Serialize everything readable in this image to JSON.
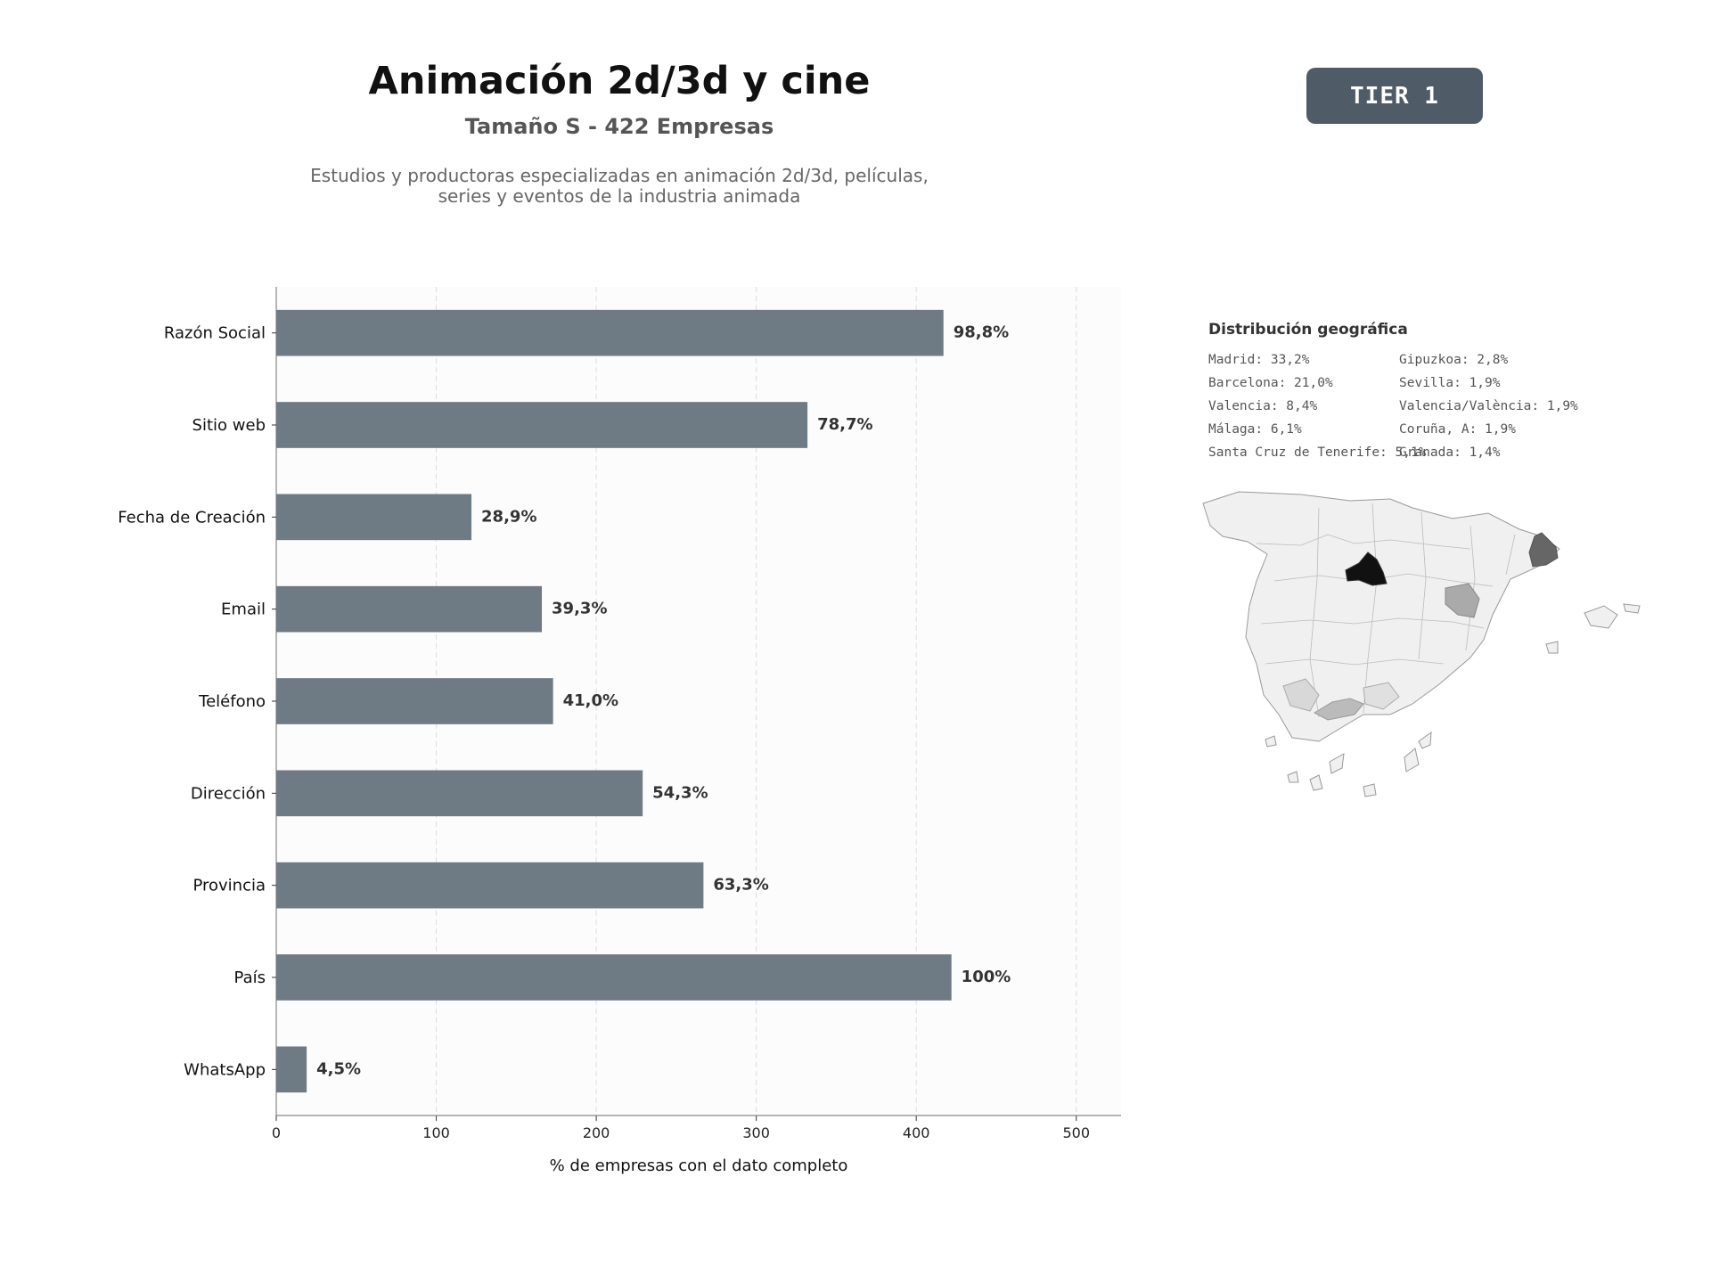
{
  "header": {
    "title": "Animación 2d/3d y cine",
    "subtitle": "Tamaño S - 422 Empresas",
    "description_line1": "Estudios y productoras especializadas en animación 2d/3d, películas,",
    "description_line2": "series y eventos de la industria animada",
    "tier": "TIER 1"
  },
  "colors": {
    "bar": "#6e7a84",
    "bar_label": "#333333",
    "plot_background": "#fcfcfc",
    "map_base": "#f0f0f0",
    "map_border": "#999999"
  },
  "chart_data": {
    "type": "bar",
    "orientation": "horizontal",
    "categories": [
      "Razón Social",
      "Sitio web",
      "Fecha de Creación",
      "Email",
      "Teléfono",
      "Dirección",
      "Provincia",
      "País",
      "WhatsApp"
    ],
    "values": [
      417,
      332,
      122,
      166,
      173,
      229,
      267,
      422,
      19
    ],
    "value_labels": [
      "98,8%",
      "78,7%",
      "28,9%",
      "39,3%",
      "41,0%",
      "54,3%",
      "63,3%",
      "100%",
      "4,5%"
    ],
    "xlabel": "% de empresas con el dato completo",
    "ylabel": "",
    "xlim": [
      0,
      528
    ],
    "xticks": [
      0,
      100,
      200,
      300,
      400,
      500
    ],
    "grid": "vertical dashed"
  },
  "geo": {
    "title": "Distribución geográfica",
    "column1": [
      "Madrid: 33,2%",
      "Barcelona: 21,0%",
      "Valencia: 8,4%",
      "Málaga: 6,1%",
      "Santa Cruz de Tenerife: 5,1%"
    ],
    "column2": [
      "Gipuzkoa: 2,8%",
      "Sevilla: 1,9%",
      "Valencia/València: 1,9%",
      "Coruña, A: 1,9%",
      "Granada: 1,4%"
    ],
    "highlighted_regions": [
      {
        "name": "Madrid",
        "share": 33.2,
        "color": "#111111"
      },
      {
        "name": "Barcelona",
        "share": 21.0,
        "color": "#666666"
      },
      {
        "name": "Valencia",
        "share": 8.4,
        "color": "#aaaaaa"
      },
      {
        "name": "Málaga",
        "share": 6.1,
        "color": "#bbbbbb"
      }
    ]
  }
}
